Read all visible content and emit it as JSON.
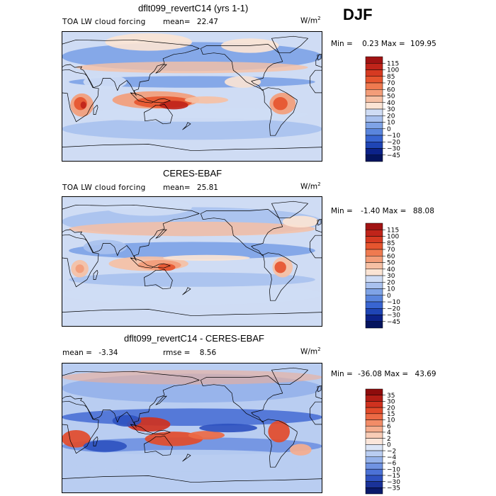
{
  "season": "DJF",
  "panels": [
    {
      "title": "dflt099_revertC14 (yrs 1-1)",
      "variable": "TOA LW cloud forcing",
      "stat_label": "mean=",
      "stat_value": "22.47",
      "units": "W/m",
      "units_sup": "2",
      "min_label": "Min =",
      "min_value": "0.23",
      "max_label": "Max =",
      "max_value": "109.95"
    },
    {
      "title": "CERES-EBAF",
      "variable": "TOA LW cloud forcing",
      "stat_label": "mean=",
      "stat_value": "25.81",
      "units": "W/m",
      "units_sup": "2",
      "min_label": "Min =",
      "min_value": "-1.40",
      "max_label": "Max =",
      "max_value": "88.08"
    },
    {
      "title": "dflt099_revertC14 - CERES-EBAF",
      "mean_label": "mean =",
      "mean_value": "-3.34",
      "rmse_label": "rmse =",
      "rmse_value": "8.56",
      "units": "W/m",
      "units_sup": "2",
      "min_label": "Min =",
      "min_value": "-36.08",
      "max_label": "Max =",
      "max_value": "43.69"
    }
  ],
  "chart_data": [
    {
      "type": "heatmap",
      "title": "dflt099_revertC14 (yrs 1-1)",
      "subtitle": "TOA LW cloud forcing",
      "mean": 22.47,
      "min": 0.23,
      "max": 109.95,
      "units": "W/m2",
      "colorbar_levels": [
        115,
        100,
        85,
        70,
        60,
        50,
        40,
        30,
        20,
        10,
        0,
        -10,
        -20,
        -30,
        -45
      ],
      "colorbar_colors": [
        "#a11313",
        "#c0241a",
        "#d63a22",
        "#e6552f",
        "#ef7a50",
        "#f39d79",
        "#f6c0a4",
        "#fbe4d4",
        "#cfdcf4",
        "#a9c1ee",
        "#7fa3e6",
        "#5a85dd",
        "#3965d1",
        "#1f45b5",
        "#0c2289",
        "#04145e"
      ]
    },
    {
      "type": "heatmap",
      "title": "CERES-EBAF",
      "subtitle": "TOA LW cloud forcing",
      "mean": 25.81,
      "min": -1.4,
      "max": 88.08,
      "units": "W/m2",
      "colorbar_levels": [
        115,
        100,
        85,
        70,
        60,
        50,
        40,
        30,
        20,
        10,
        0,
        -10,
        -20,
        -30,
        -45
      ],
      "colorbar_colors": [
        "#a11313",
        "#c0241a",
        "#d63a22",
        "#e6552f",
        "#ef7a50",
        "#f39d79",
        "#f6c0a4",
        "#fbe4d4",
        "#cfdcf4",
        "#a9c1ee",
        "#7fa3e6",
        "#5a85dd",
        "#3965d1",
        "#1f45b5",
        "#0c2289",
        "#04145e"
      ]
    },
    {
      "type": "heatmap",
      "title": "dflt099_revertC14 - CERES-EBAF",
      "mean": -3.34,
      "rmse": 8.56,
      "min": -36.08,
      "max": 43.69,
      "units": "W/m2",
      "colorbar_levels": [
        35,
        30,
        20,
        15,
        10,
        6,
        4,
        2,
        0,
        -2,
        -4,
        -6,
        -10,
        -15,
        -30,
        -35
      ],
      "colorbar_colors": [
        "#8e0c0c",
        "#b31d15",
        "#cf321f",
        "#e24b2b",
        "#ec6a45",
        "#f28c67",
        "#f5ad8e",
        "#f8ccb6",
        "#fbe6da",
        "#dbe5f6",
        "#b9cdf1",
        "#95b2ea",
        "#7093e2",
        "#4c72d6",
        "#2f52c0",
        "#1a3299",
        "#0a1a6b"
      ]
    }
  ]
}
